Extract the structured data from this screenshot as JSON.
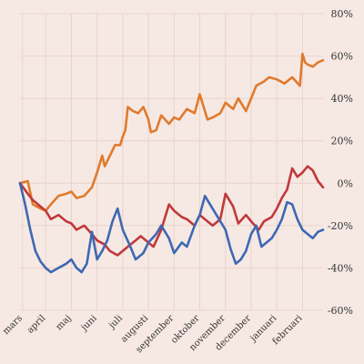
{
  "chart_data": {
    "type": "line",
    "title": "",
    "xlabel": "",
    "ylabel": "",
    "grid": true,
    "y_axis_side": "right",
    "ylim": [
      -60,
      80
    ],
    "y_ticks": [
      80,
      60,
      40,
      20,
      0,
      -20,
      -40,
      -60
    ],
    "y_tick_labels": [
      "80%",
      "60%",
      "40%",
      "20%",
      "0%",
      "-20%",
      "-40%",
      "-60%"
    ],
    "x_tick_labels": [
      "mars",
      "april",
      "maj",
      "juni",
      "juli",
      "augusti",
      "september",
      "oktober",
      "november",
      "december",
      "januari",
      "februari"
    ],
    "x_tick_positions": [
      0.1,
      1.0,
      2.0,
      3.0,
      4.0,
      5.0,
      6.0,
      7.0,
      8.0,
      9.0,
      10.0,
      11.0
    ],
    "xlim": [
      0,
      11.8
    ],
    "series": [
      {
        "color": "#e07a2c",
        "x": [
          0.0,
          0.3,
          0.5,
          0.8,
          1.0,
          1.2,
          1.5,
          1.8,
          2.0,
          2.2,
          2.5,
          2.8,
          3.0,
          3.2,
          3.3,
          3.5,
          3.7,
          3.9,
          4.0,
          4.1,
          4.2,
          4.4,
          4.6,
          4.8,
          5.0,
          5.1,
          5.3,
          5.5,
          5.8,
          6.0,
          6.2,
          6.5,
          6.8,
          7.0,
          7.3,
          7.5,
          7.8,
          8.0,
          8.3,
          8.5,
          8.8,
          9.0,
          9.2,
          9.5,
          9.7,
          10.0,
          10.3,
          10.6,
          10.9,
          11.0,
          11.1,
          11.2,
          11.4,
          11.6,
          11.8
        ],
        "y": [
          0,
          1,
          -10,
          -12,
          -13,
          -10,
          -6,
          -5,
          -4,
          -7,
          -6,
          -2,
          5,
          13,
          8,
          13,
          18,
          18,
          22,
          25,
          36,
          34,
          33,
          36,
          30,
          24,
          25,
          32,
          28,
          31,
          30,
          35,
          33,
          42,
          30,
          31,
          33,
          38,
          35,
          40,
          34,
          40,
          46,
          48,
          50,
          49,
          47,
          50,
          46,
          61,
          57,
          56,
          55,
          57,
          58
        ]
      },
      {
        "color": "#c0393b",
        "x": [
          0.0,
          0.3,
          0.5,
          0.7,
          1.0,
          1.2,
          1.5,
          1.8,
          2.0,
          2.2,
          2.5,
          2.8,
          3.0,
          3.3,
          3.5,
          3.8,
          4.0,
          4.3,
          4.5,
          4.7,
          5.0,
          5.2,
          5.5,
          5.8,
          6.0,
          6.3,
          6.5,
          6.8,
          7.0,
          7.3,
          7.5,
          7.8,
          8.0,
          8.3,
          8.5,
          8.8,
          9.0,
          9.3,
          9.5,
          9.8,
          10.0,
          10.2,
          10.4,
          10.6,
          10.8,
          11.0,
          11.2,
          11.4,
          11.6,
          11.8
        ],
        "y": [
          0,
          -5,
          -8,
          -10,
          -13,
          -17,
          -15,
          -18,
          -19,
          -22,
          -20,
          -24,
          -27,
          -29,
          -32,
          -34,
          -32,
          -29,
          -27,
          -25,
          -28,
          -30,
          -22,
          -10,
          -13,
          -16,
          -17,
          -20,
          -15,
          -18,
          -20,
          -17,
          -5,
          -11,
          -19,
          -15,
          -18,
          -22,
          -18,
          -16,
          -12,
          -7,
          -3,
          7,
          3,
          5,
          8,
          6,
          1,
          -2
        ]
      },
      {
        "color": "#3e68b3",
        "x": [
          0.0,
          0.2,
          0.4,
          0.6,
          0.8,
          1.0,
          1.2,
          1.5,
          1.8,
          2.0,
          2.2,
          2.4,
          2.6,
          2.8,
          3.0,
          3.2,
          3.4,
          3.6,
          3.8,
          4.0,
          4.3,
          4.5,
          4.8,
          5.0,
          5.3,
          5.5,
          5.8,
          6.0,
          6.3,
          6.5,
          6.8,
          7.0,
          7.2,
          7.4,
          7.6,
          7.8,
          8.0,
          8.2,
          8.4,
          8.6,
          8.8,
          9.0,
          9.2,
          9.4,
          9.6,
          9.8,
          10.0,
          10.2,
          10.4,
          10.6,
          10.8,
          11.0,
          11.2,
          11.4,
          11.6,
          11.8
        ],
        "y": [
          0,
          -10,
          -22,
          -32,
          -37,
          -40,
          -42,
          -40,
          -38,
          -36,
          -40,
          -42,
          -38,
          -23,
          -36,
          -32,
          -27,
          -18,
          -12,
          -22,
          -30,
          -36,
          -33,
          -28,
          -24,
          -20,
          -26,
          -33,
          -28,
          -30,
          -20,
          -15,
          -6,
          -10,
          -14,
          -18,
          -22,
          -31,
          -38,
          -36,
          -32,
          -24,
          -20,
          -30,
          -28,
          -26,
          -22,
          -17,
          -9,
          -10,
          -17,
          -22,
          -24,
          -26,
          -23,
          -22
        ]
      }
    ]
  }
}
